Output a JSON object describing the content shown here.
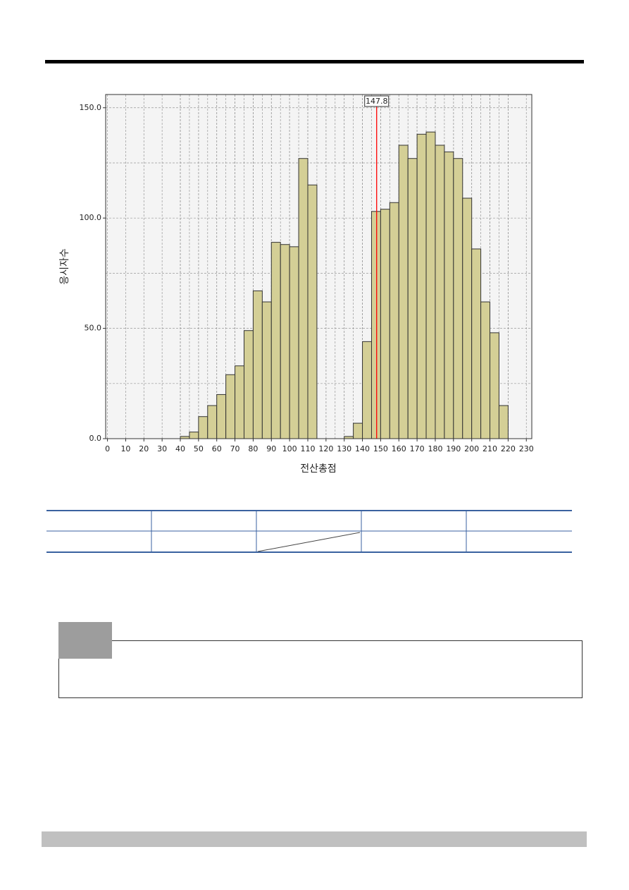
{
  "chart_data": {
    "type": "histogram",
    "xlabel": "전산총점",
    "ylabel": "응시자수",
    "bins": [
      40,
      45,
      50,
      55,
      60,
      65,
      70,
      75,
      80,
      85,
      90,
      95,
      100,
      105,
      110,
      115,
      120,
      125,
      130,
      135,
      140,
      145,
      150,
      155,
      160,
      165,
      170,
      175,
      180,
      185,
      190,
      195,
      200,
      205,
      210,
      215,
      220
    ],
    "counts": [
      1,
      3,
      10,
      15,
      20,
      29,
      33,
      49,
      67,
      62,
      89,
      88,
      87,
      127,
      115,
      0,
      0,
      0,
      1,
      7,
      44,
      103,
      104,
      107,
      133,
      127,
      138,
      139,
      133,
      130,
      127,
      109,
      86,
      62,
      48,
      15
    ],
    "color": "#d4cf96",
    "xlim": [
      -1,
      233
    ],
    "xticks": [
      0,
      10,
      20,
      30,
      40,
      50,
      60,
      70,
      80,
      90,
      100,
      110,
      120,
      130,
      140,
      150,
      160,
      170,
      180,
      190,
      200,
      210,
      220,
      230
    ],
    "ylim": [
      0,
      156
    ],
    "yticks": [
      {
        "value": 0,
        "label": "0.0"
      },
      {
        "value": 50,
        "label": "50.0"
      },
      {
        "value": 100,
        "label": "100.0"
      },
      {
        "value": 150,
        "label": "150.0"
      }
    ],
    "grid": true,
    "reference_line": {
      "value": 147.8,
      "label": "147.8",
      "color": "#ff0000"
    }
  }
}
